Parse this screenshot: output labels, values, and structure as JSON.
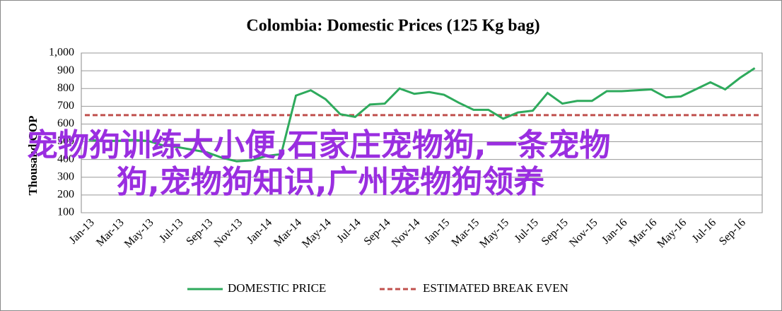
{
  "chart_data": {
    "type": "line",
    "title": "Colombia:  Domestic Prices (125 Kg bag)",
    "y_label": "Thousand COP",
    "categories": [
      "Jan-13",
      null,
      "Mar-13",
      null,
      "May-13",
      null,
      "Jul-13",
      null,
      "Sep-13",
      null,
      "Nov-13",
      null,
      "Jan-14",
      null,
      "Mar-14",
      null,
      "May-14",
      null,
      "Jul-14",
      null,
      "Sep-14",
      null,
      "Nov-14",
      null,
      "Jan-15",
      null,
      "Mar-15",
      null,
      "May-15",
      null,
      "Jul-15",
      null,
      "Sep-15",
      null,
      "Nov-15",
      null,
      "Jan-16",
      null,
      "Mar-16",
      null,
      "May-16",
      null,
      "Jul-16",
      null,
      "Sep-16",
      null
    ],
    "series": [
      {
        "name": "DOMESTIC PRICE",
        "color": "#2eaa5c",
        "values": [
          510,
          505,
          505,
          510,
          505,
          480,
          470,
          455,
          440,
          410,
          390,
          395,
          420,
          430,
          760,
          790,
          740,
          655,
          640,
          710,
          715,
          800,
          770,
          780,
          765,
          720,
          680,
          680,
          630,
          665,
          675,
          775,
          715,
          730,
          730,
          785,
          785,
          790,
          795,
          750,
          755,
          795,
          835,
          795,
          860,
          915
        ]
      }
    ],
    "reference_lines": [
      {
        "name": "ESTIMATED BREAK EVEN",
        "value": 650,
        "color": "#c0504d",
        "dashed": true
      }
    ],
    "ylim": [
      100,
      1000
    ],
    "yticks": [
      100,
      200,
      300,
      400,
      500,
      600,
      700,
      800,
      900,
      {
        "value": 1000,
        "label": "1,000"
      }
    ],
    "grid": true,
    "legend": "bottom",
    "overlay_text": [
      "宠物狗训练大小便,石家庄宠物狗,一条宠物",
      "狗,宠物狗知识,广州宠物狗领养"
    ]
  }
}
